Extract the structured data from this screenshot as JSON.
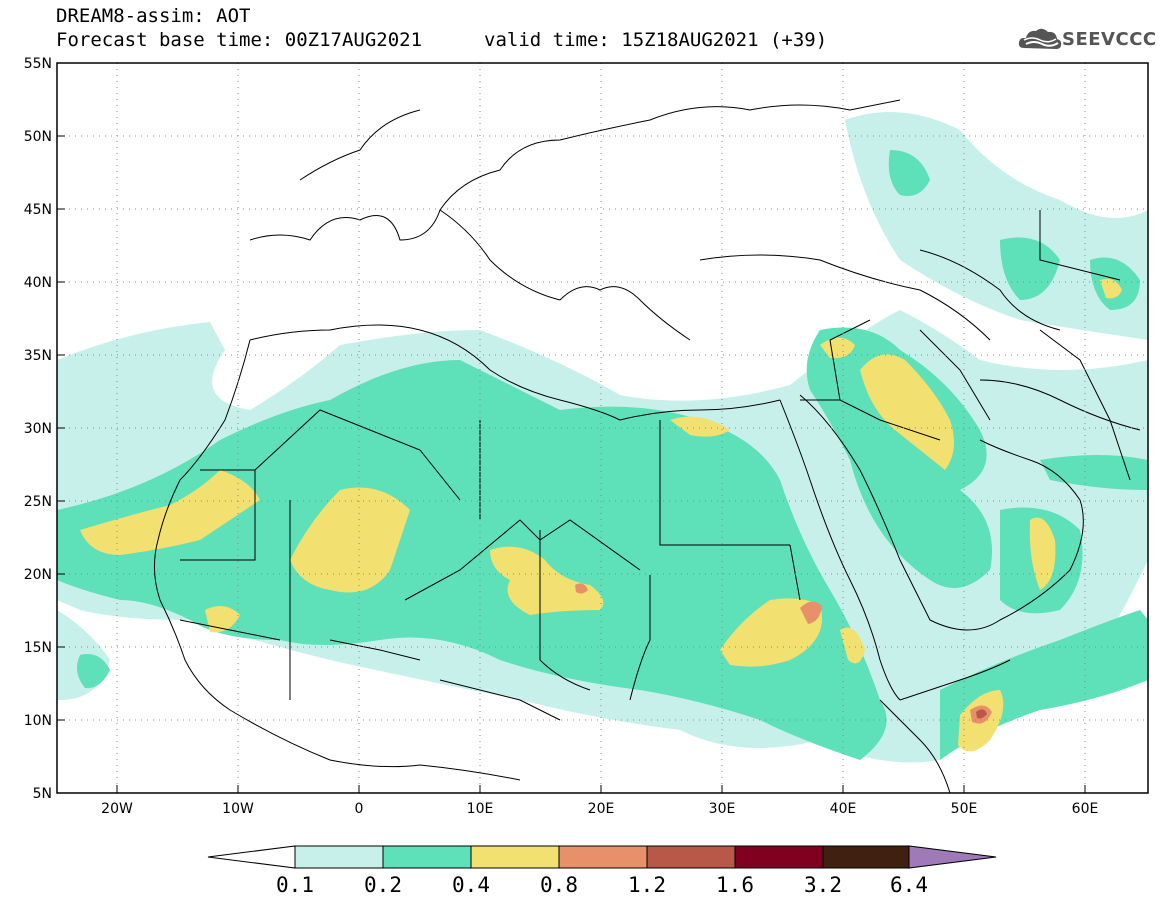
{
  "header": {
    "title": "DREAM8-assim: AOT",
    "base_time": "Forecast base time: 00Z17AUG2021",
    "valid_time": "valid time: 15Z18AUG2021 (+39)",
    "logo_text": "SEEVCCC"
  },
  "map": {
    "lon_range": [
      -25,
      65
    ],
    "lat_range": [
      5,
      55
    ],
    "lat_ticks": [
      "55N",
      "50N",
      "45N",
      "40N",
      "35N",
      "30N",
      "25N",
      "20N",
      "15N",
      "10N",
      "5N"
    ],
    "lon_ticks": [
      "20W",
      "10W",
      "0",
      "10E",
      "20E",
      "30E",
      "40E",
      "50E",
      "60E"
    ]
  },
  "colorbar": {
    "labels": [
      "0.1",
      "0.2",
      "0.4",
      "0.8",
      "1.2",
      "1.6",
      "3.2",
      "6.4"
    ],
    "colors": [
      "#c8f0ea",
      "#5ee0b8",
      "#f2e070",
      "#e8906a",
      "#b85848",
      "#800020",
      "#402010",
      "#a07ab8"
    ]
  }
}
